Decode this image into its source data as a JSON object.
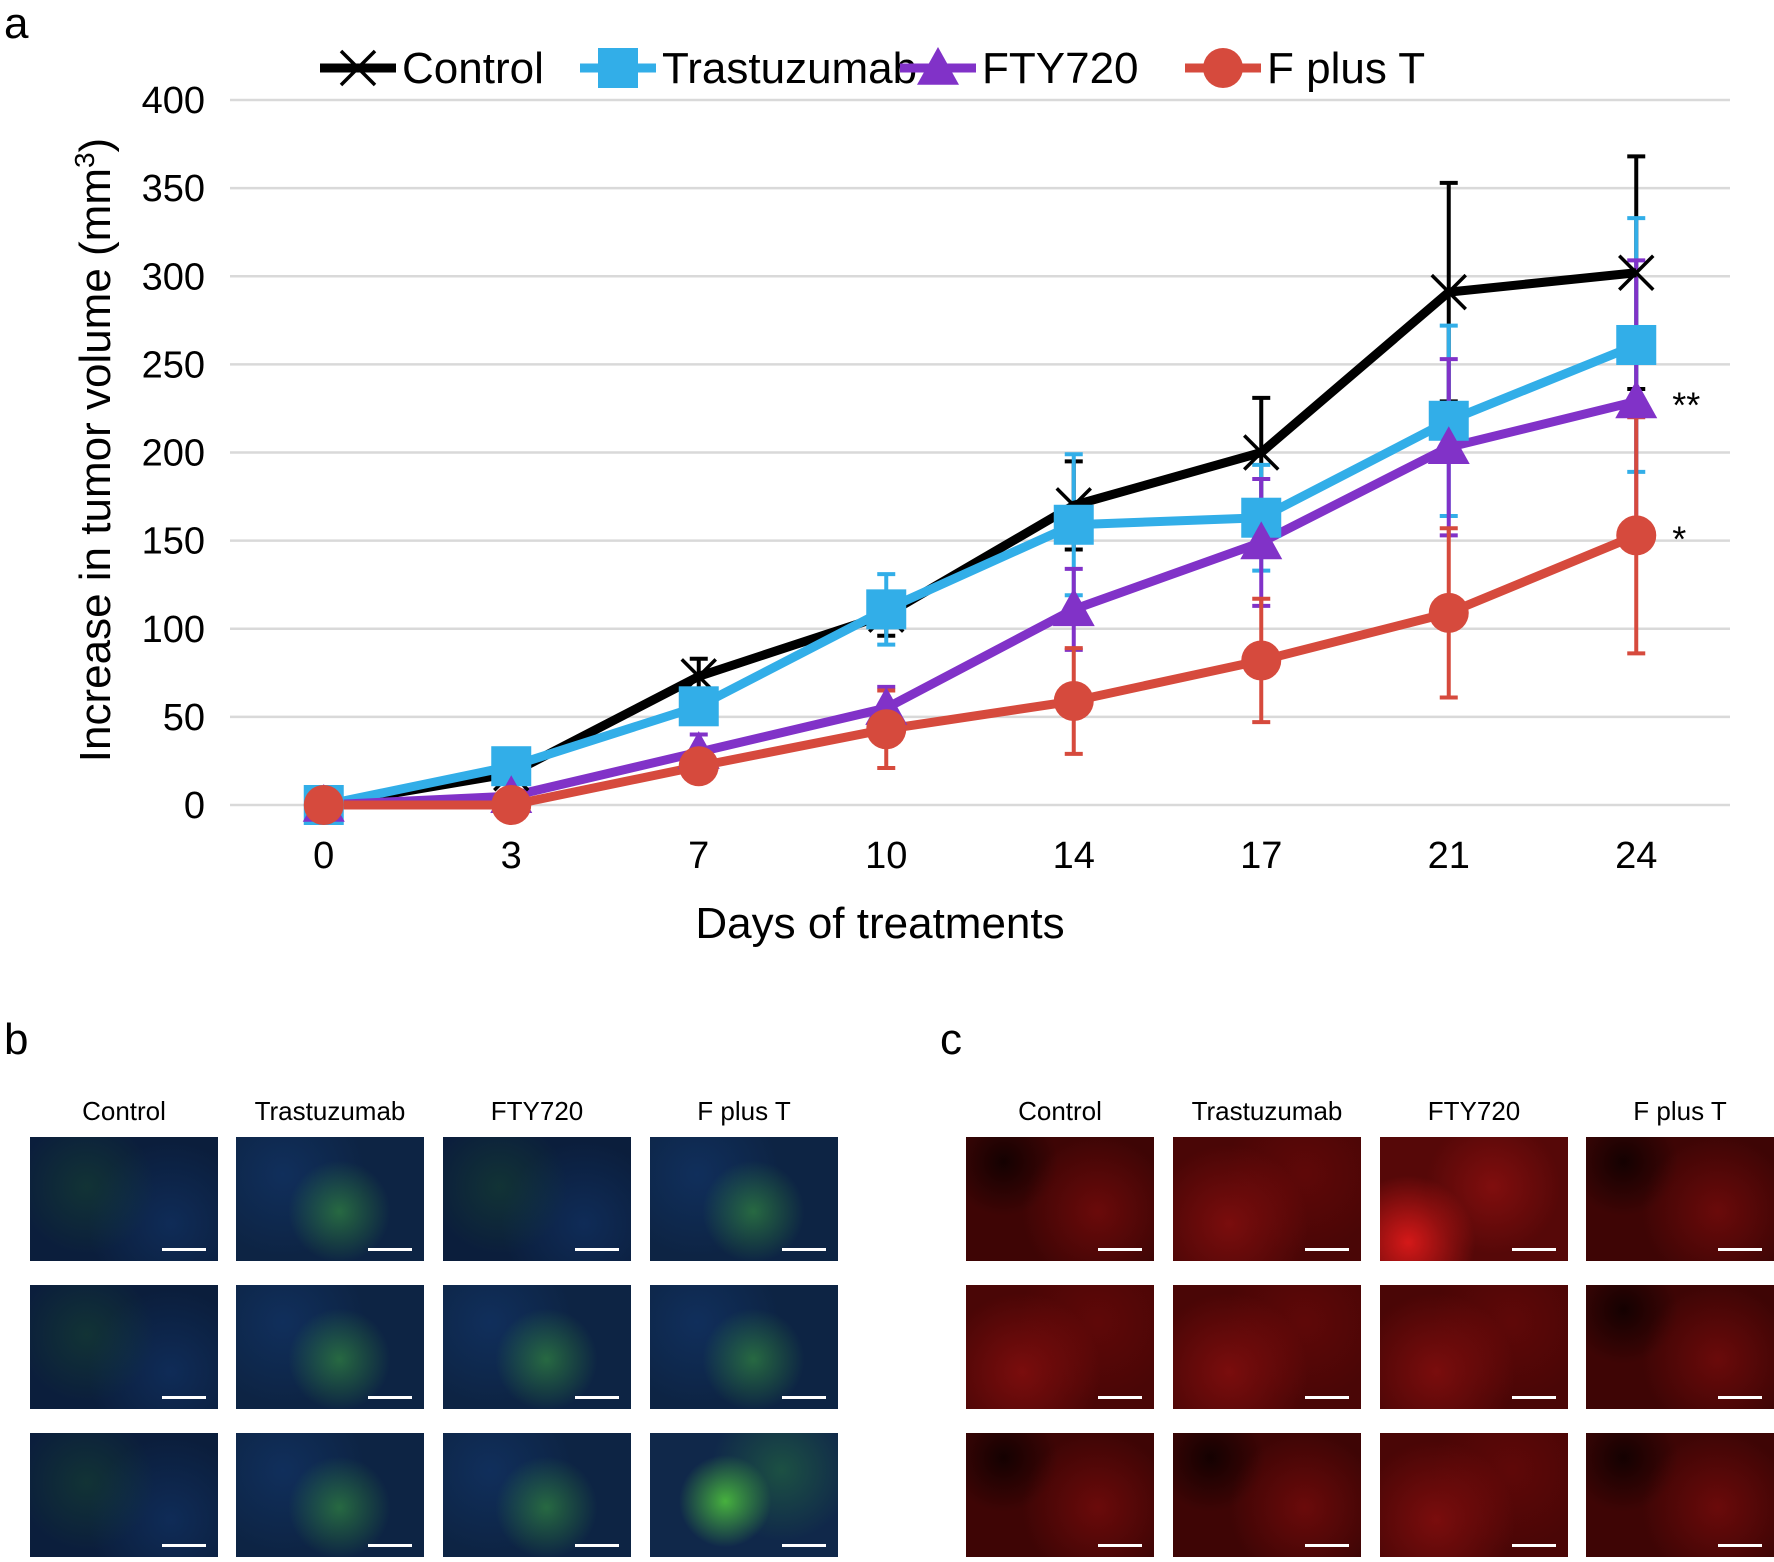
{
  "panels": {
    "a": "a",
    "b": "b",
    "c": "c"
  },
  "chart_data": {
    "type": "line",
    "title": "",
    "xlabel": "Days of treatments",
    "ylabel_main": "Increase in tumor volume (mm",
    "ylabel_sup": "3",
    "ylabel_close": ")",
    "categories": [
      "0",
      "3",
      "7",
      "10",
      "14",
      "17",
      "21",
      "24"
    ],
    "ylim": [
      0,
      400
    ],
    "yticks": [
      0,
      50,
      100,
      150,
      200,
      250,
      300,
      350,
      400
    ],
    "grid": true,
    "legend_position": "top",
    "series": [
      {
        "name": "Control",
        "color": "#000000",
        "marker": "x",
        "values": [
          0,
          18,
          73,
          108,
          170,
          200,
          291,
          302
        ],
        "errors": [
          0,
          0,
          10,
          12,
          25,
          31,
          62,
          66
        ]
      },
      {
        "name": "Trastuzumab",
        "color": "#32aee8",
        "marker": "square",
        "values": [
          0,
          22,
          56,
          111,
          159,
          163,
          218,
          261
        ],
        "errors": [
          0,
          4,
          7,
          20,
          40,
          30,
          54,
          72
        ]
      },
      {
        "name": "FTY720",
        "color": "#8132c8",
        "marker": "triangle",
        "values": [
          0,
          5,
          30,
          55,
          111,
          149,
          203,
          229
        ],
        "errors": [
          0,
          3,
          10,
          12,
          23,
          36,
          50,
          80
        ]
      },
      {
        "name": "F plus T",
        "color": "#d64a3d",
        "marker": "circle",
        "values": [
          0,
          0,
          22,
          43,
          59,
          82,
          109,
          153
        ],
        "errors": [
          0,
          0,
          9,
          22,
          30,
          35,
          48,
          67
        ]
      }
    ],
    "annotations": [
      {
        "text": "**",
        "series": "FTY720",
        "day": "24"
      },
      {
        "text": "*",
        "series": "F plus T",
        "day": "24"
      }
    ]
  },
  "micrographs": {
    "b": {
      "columns": [
        "Control",
        "Trastuzumab",
        "FTY720",
        "F plus T"
      ]
    },
    "c": {
      "columns": [
        "Control",
        "Trastuzumab",
        "FTY720",
        "F plus T"
      ]
    }
  }
}
